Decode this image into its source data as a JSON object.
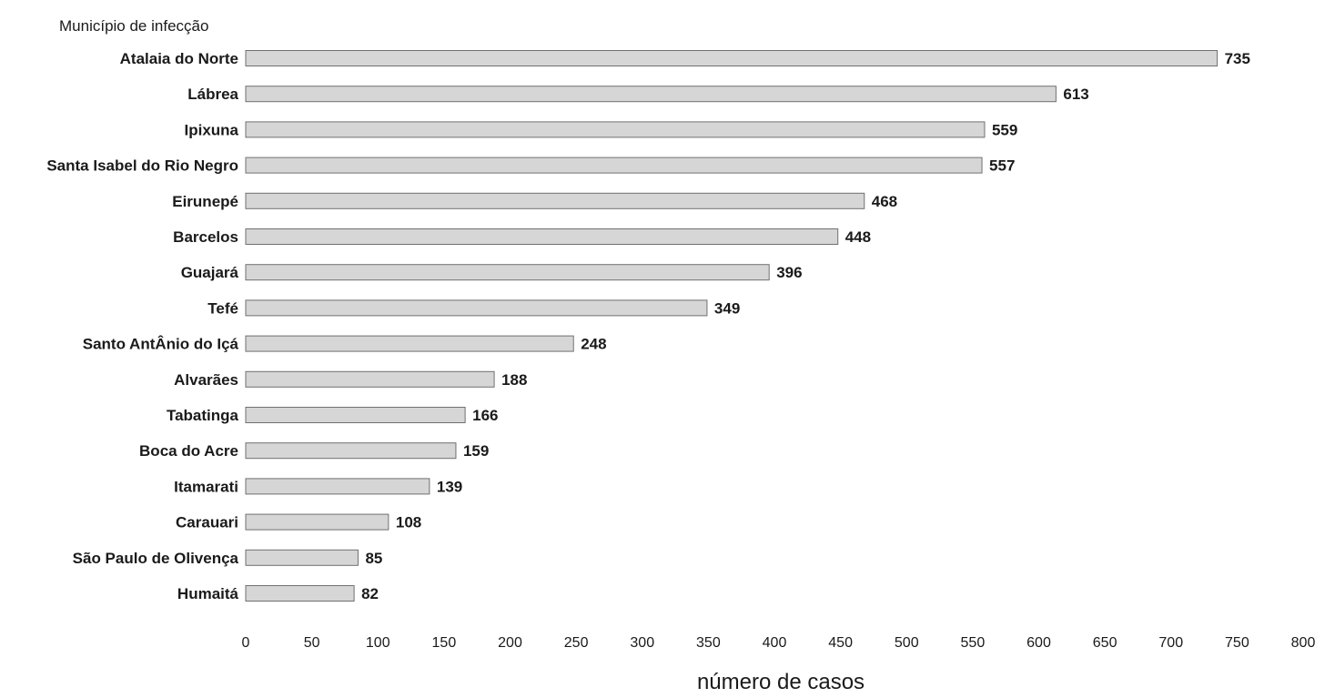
{
  "chart_data": {
    "type": "bar",
    "orientation": "horizontal",
    "title": "",
    "ylabel": "Município de infecção",
    "xlabel": "número de casos",
    "xlim": [
      0,
      800
    ],
    "xticks": [
      "0",
      "50",
      "100",
      "150",
      "200",
      "250",
      "300",
      "350",
      "400",
      "450",
      "500",
      "550",
      "600",
      "650",
      "700",
      "750",
      "800"
    ],
    "categories": [
      "Atalaia do Norte",
      "Lábrea",
      "Ipixuna",
      "Santa Isabel do Rio Negro",
      "Eirunepé",
      "Barcelos",
      "Guajará",
      "Tefé",
      "Santo AntÂnio do Içá",
      "Alvarães",
      "Tabatinga",
      "Boca do Acre",
      "Itamarati",
      "Carauari",
      "São Paulo de Olivença",
      "Humaitá"
    ],
    "values": [
      735,
      613,
      559,
      557,
      468,
      448,
      396,
      349,
      248,
      188,
      166,
      159,
      139,
      108,
      85,
      82
    ],
    "value_labels": [
      "735",
      "613",
      "559",
      "557",
      "468",
      "448",
      "396",
      "349",
      "248",
      "188",
      "166",
      "159",
      "139",
      "108",
      "85",
      "82"
    ],
    "grid": false,
    "legend": "none",
    "bar_color": "#d6d6d6",
    "bar_edge_color": "#707070"
  }
}
